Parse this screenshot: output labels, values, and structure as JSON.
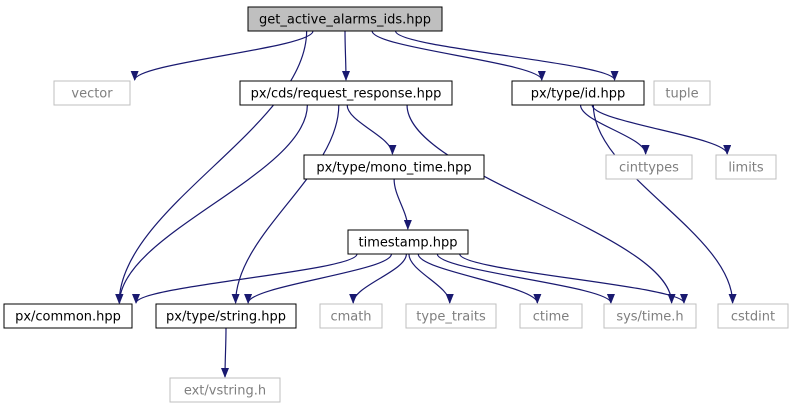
{
  "colors": {
    "edge": "#191970",
    "root_fill": "#bfbfbf",
    "node_stroke": "#000000",
    "external_stroke": "#bfbfbf",
    "text": "#000000",
    "external_text": "#7f7f7f"
  },
  "nodes": [
    {
      "id": "root",
      "label": "get_active_alarms_ids.hpp",
      "style": "root"
    },
    {
      "id": "vector",
      "label": "vector",
      "style": "external"
    },
    {
      "id": "request_response",
      "label": "px/cds/request_response.hpp",
      "style": "internal"
    },
    {
      "id": "id_hpp",
      "label": "px/type/id.hpp",
      "style": "internal"
    },
    {
      "id": "tuple",
      "label": "tuple",
      "style": "external"
    },
    {
      "id": "mono_time",
      "label": "px/type/mono_time.hpp",
      "style": "internal"
    },
    {
      "id": "cinttypes",
      "label": "cinttypes",
      "style": "external"
    },
    {
      "id": "limits",
      "label": "limits",
      "style": "external"
    },
    {
      "id": "timestamp",
      "label": "timestamp.hpp",
      "style": "internal"
    },
    {
      "id": "common",
      "label": "px/common.hpp",
      "style": "internal"
    },
    {
      "id": "string_hpp",
      "label": "px/type/string.hpp",
      "style": "internal"
    },
    {
      "id": "cmath",
      "label": "cmath",
      "style": "external"
    },
    {
      "id": "type_traits",
      "label": "type_traits",
      "style": "external"
    },
    {
      "id": "ctime",
      "label": "ctime",
      "style": "external"
    },
    {
      "id": "sys_time",
      "label": "sys/time.h",
      "style": "external"
    },
    {
      "id": "cstdint",
      "label": "cstdint",
      "style": "external"
    },
    {
      "id": "vstring",
      "label": "ext/vstring.h",
      "style": "external"
    }
  ],
  "edges": [
    {
      "from": "root",
      "to": "vector"
    },
    {
      "from": "root",
      "to": "request_response"
    },
    {
      "from": "root",
      "to": "id_hpp"
    },
    {
      "from": "root",
      "to": "tuple"
    },
    {
      "from": "root",
      "to": "common"
    },
    {
      "from": "request_response",
      "to": "mono_time"
    },
    {
      "from": "request_response",
      "to": "common"
    },
    {
      "from": "request_response",
      "to": "string_hpp"
    },
    {
      "from": "request_response",
      "to": "cstdint"
    },
    {
      "from": "id_hpp",
      "to": "cinttypes"
    },
    {
      "from": "id_hpp",
      "to": "limits"
    },
    {
      "from": "id_hpp",
      "to": "cstdint"
    },
    {
      "from": "mono_time",
      "to": "timestamp"
    },
    {
      "from": "timestamp",
      "to": "common"
    },
    {
      "from": "timestamp",
      "to": "string_hpp"
    },
    {
      "from": "timestamp",
      "to": "cmath"
    },
    {
      "from": "timestamp",
      "to": "type_traits"
    },
    {
      "from": "timestamp",
      "to": "ctime"
    },
    {
      "from": "timestamp",
      "to": "sys_time"
    },
    {
      "from": "timestamp",
      "to": "cstdint"
    },
    {
      "from": "string_hpp",
      "to": "vstring"
    }
  ]
}
